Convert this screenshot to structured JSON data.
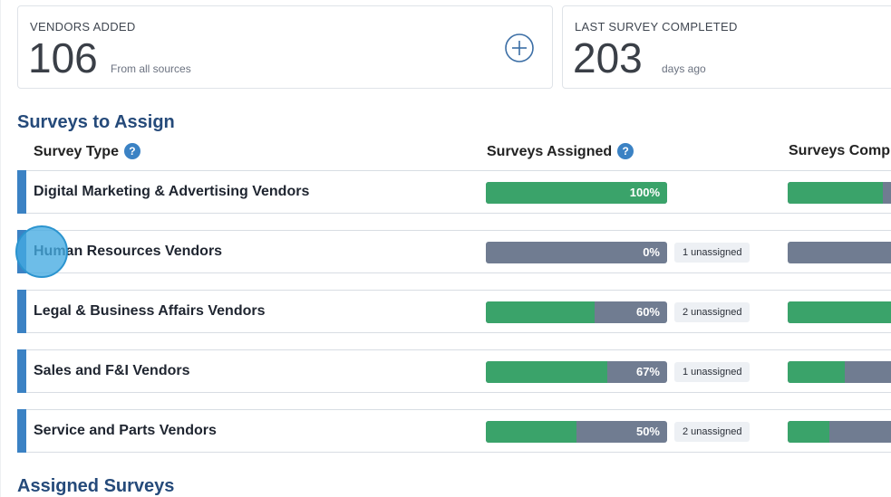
{
  "cards": [
    {
      "label": "VENDORS ADDED",
      "value": "106",
      "sub": "From all sources",
      "action_icon": "plus-circle-icon"
    },
    {
      "label": "LAST SURVEY COMPLETED",
      "value": "203",
      "sub": "days ago"
    }
  ],
  "surveys_to_assign": {
    "title": "Surveys to Assign",
    "columns": [
      "Survey Type",
      "Surveys Assigned",
      "Surveys Comp"
    ],
    "help_glyph": "?",
    "rows": [
      {
        "label": "Digital Marketing & Advertising Vendors",
        "assigned_pct": 100,
        "assigned_text": "100%",
        "unassigned": "",
        "completed_pct": 75
      },
      {
        "label": "Human Resources Vendors",
        "assigned_pct": 0,
        "assigned_text": "0%",
        "unassigned": "1 unassigned",
        "completed_pct": 0
      },
      {
        "label": "Legal & Business Affairs Vendors",
        "assigned_pct": 60,
        "assigned_text": "60%",
        "unassigned": "2 unassigned",
        "completed_pct": 100
      },
      {
        "label": "Sales and F&I Vendors",
        "assigned_pct": 67,
        "assigned_text": "67%",
        "unassigned": "1 unassigned",
        "completed_pct": 45
      },
      {
        "label": "Service and Parts Vendors",
        "assigned_pct": 50,
        "assigned_text": "50%",
        "unassigned": "2 unassigned",
        "completed_pct": 33
      }
    ]
  },
  "assigned_surveys": {
    "title": "Assigned Surveys"
  },
  "colors": {
    "accent": "#3b82c4",
    "progress_green": "#3aa36a",
    "progress_gray": "#707c91",
    "heading_blue": "#254a7a"
  }
}
